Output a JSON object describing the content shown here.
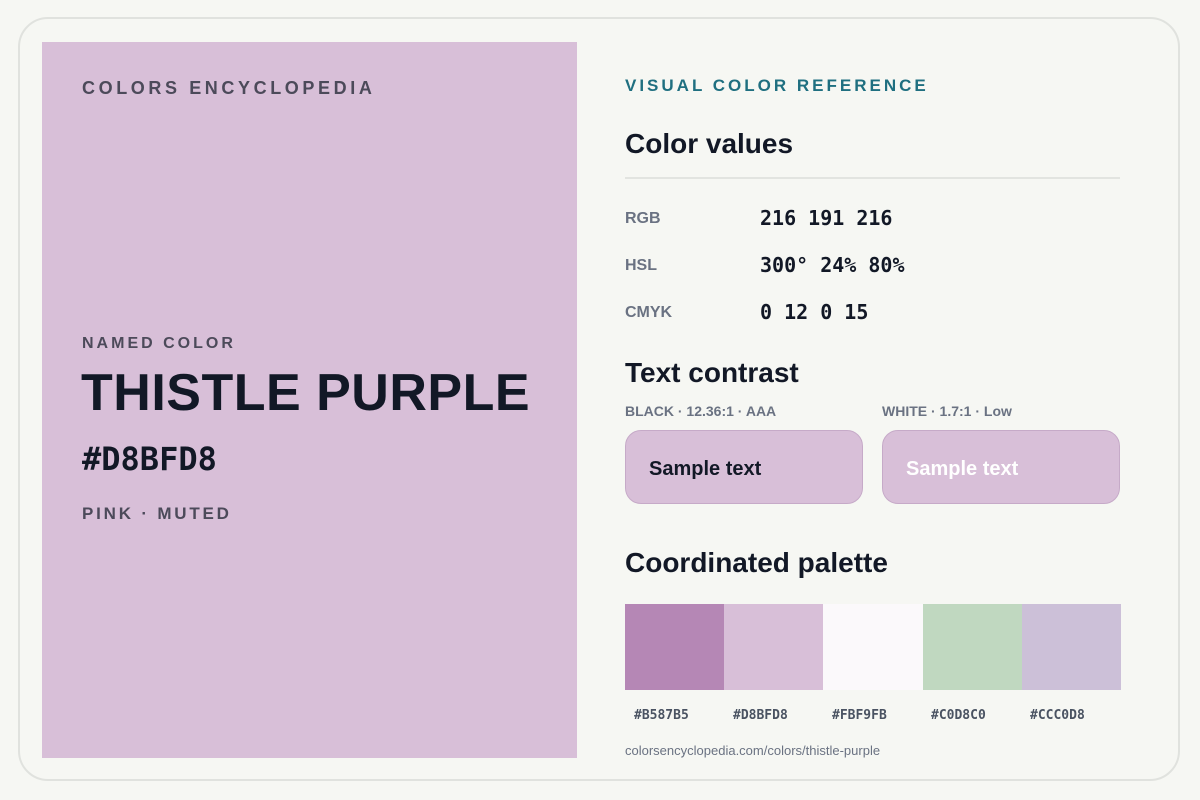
{
  "brand": "COLORS ENCYCLOPEDIA",
  "color": {
    "label": "NAMED COLOR",
    "name": "THISTLE PURPLE",
    "hex": "#D8BFD8",
    "tags": "PINK · MUTED",
    "swatch_color": "#D8BFD8"
  },
  "reference": {
    "eyebrow": "VISUAL COLOR REFERENCE",
    "values_title": "Color values",
    "values": [
      {
        "label": "RGB",
        "value": "216 191 216"
      },
      {
        "label": "HSL",
        "value": "300° 24% 80%"
      },
      {
        "label": "CMYK",
        "value": "0 12 0 15"
      }
    ],
    "contrast_title": "Text contrast",
    "contrast": [
      {
        "label": "BLACK · 12.36:1 · AAA",
        "sample": "Sample text",
        "text_color": "#121826"
      },
      {
        "label": "WHITE · 1.7:1 · Low",
        "sample": "Sample text",
        "text_color": "#ffffff"
      }
    ],
    "palette_title": "Coordinated palette",
    "palette": [
      {
        "hex": "#B587B5"
      },
      {
        "hex": "#D8BFD8"
      },
      {
        "hex": "#FBF9FB"
      },
      {
        "hex": "#C0D8C0"
      },
      {
        "hex": "#CCC0D8"
      }
    ],
    "source": "colorsencyclopedia.com/colors/thistle-purple"
  }
}
